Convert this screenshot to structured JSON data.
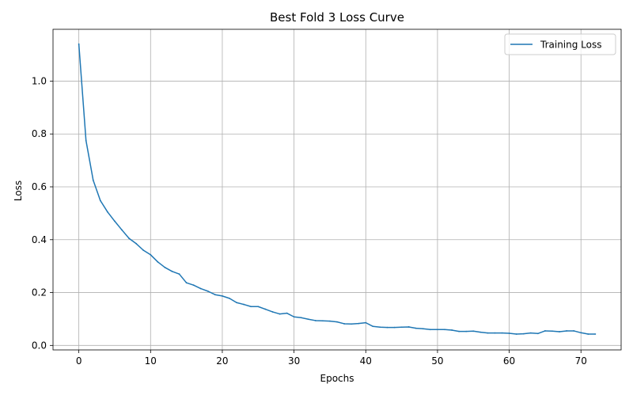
{
  "chart_data": {
    "type": "line",
    "title": "Best Fold 3 Loss Curve",
    "xlabel": "Epochs",
    "ylabel": "Loss",
    "xlim": [
      -3.6,
      75.6
    ],
    "ylim": [
      -0.017,
      1.196
    ],
    "xticks": [
      0,
      10,
      20,
      30,
      40,
      50,
      60,
      70
    ],
    "yticks": [
      0.0,
      0.2,
      0.4,
      0.6,
      0.8,
      1.0
    ],
    "ytick_labels": [
      "0.0",
      "0.2",
      "0.4",
      "0.6",
      "0.8",
      "1.0"
    ],
    "grid": true,
    "legend_position": "top-right",
    "series": [
      {
        "name": "Training Loss",
        "color": "#1f77b4",
        "x": [
          0,
          1,
          2,
          3,
          4,
          5,
          6,
          7,
          8,
          9,
          10,
          11,
          12,
          13,
          14,
          15,
          16,
          17,
          18,
          19,
          20,
          21,
          22,
          23,
          24,
          25,
          26,
          27,
          28,
          29,
          30,
          31,
          32,
          33,
          34,
          35,
          36,
          37,
          38,
          39,
          40,
          41,
          42,
          43,
          44,
          45,
          46,
          47,
          48,
          49,
          50,
          51,
          52,
          53,
          54,
          55,
          56,
          57,
          58,
          59,
          60,
          61,
          62,
          63,
          64,
          65,
          66,
          67,
          68,
          69,
          70,
          71,
          72
        ],
        "values": [
          1.14,
          0.775,
          0.625,
          0.548,
          0.505,
          0.47,
          0.437,
          0.405,
          0.385,
          0.36,
          0.343,
          0.316,
          0.295,
          0.28,
          0.27,
          0.237,
          0.228,
          0.215,
          0.205,
          0.192,
          0.187,
          0.178,
          0.162,
          0.155,
          0.147,
          0.147,
          0.137,
          0.127,
          0.119,
          0.122,
          0.108,
          0.105,
          0.099,
          0.094,
          0.093,
          0.092,
          0.089,
          0.082,
          0.081,
          0.083,
          0.086,
          0.072,
          0.069,
          0.068,
          0.068,
          0.069,
          0.07,
          0.065,
          0.063,
          0.06,
          0.06,
          0.06,
          0.058,
          0.053,
          0.053,
          0.054,
          0.05,
          0.047,
          0.047,
          0.047,
          0.046,
          0.043,
          0.044,
          0.047,
          0.045,
          0.055,
          0.054,
          0.052,
          0.055,
          0.055,
          0.048,
          0.043,
          0.043
        ]
      }
    ]
  }
}
